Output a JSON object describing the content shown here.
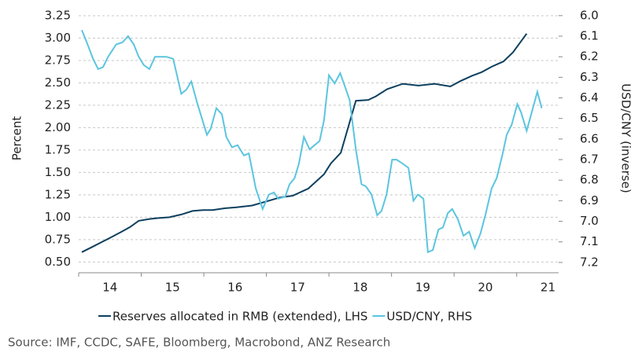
{
  "chart_data": {
    "type": "line",
    "y_axis_label": "Percent",
    "y2_axis_label": "USD/CNY (inverse)",
    "source": "Source: IMF, CCDC, SAFE, Bloomberg, Macrobond, ANZ Research",
    "xlim": [
      2014,
      2021.67
    ],
    "xticks": [
      {
        "value": 2014.5,
        "label": "14"
      },
      {
        "value": 2015.5,
        "label": "15"
      },
      {
        "value": 2016.5,
        "label": "16"
      },
      {
        "value": 2017.5,
        "label": "17"
      },
      {
        "value": 2018.5,
        "label": "18"
      },
      {
        "value": 2019.5,
        "label": "19"
      },
      {
        "value": 2020.5,
        "label": "20"
      },
      {
        "value": 2021.5,
        "label": "21"
      }
    ],
    "xminor_ticks": [
      2014,
      2015,
      2016,
      2017,
      2018,
      2019,
      2020,
      2021
    ],
    "ylim": [
      0.38,
      3.32
    ],
    "yticks": [
      {
        "value": 0.5,
        "label": "0.50"
      },
      0.75,
      {
        "value": 1,
        "label": "1.00"
      },
      1.25,
      {
        "value": 1.5,
        "label": "1.50"
      },
      1.75,
      {
        "value": 2,
        "label": "2.00"
      },
      2.25,
      {
        "value": 2.5,
        "label": "2.50"
      },
      2.75,
      {
        "value": 3,
        "label": "3.00"
      },
      3.25
    ],
    "y2lim": [
      5.97,
      7.25
    ],
    "y2_inverse": true,
    "y2ticks": [
      {
        "value": 6,
        "label": "6.0"
      },
      6.1,
      6.2,
      6.3,
      6.4,
      6.5,
      6.6,
      6.7,
      6.8,
      6.9,
      {
        "value": 7,
        "label": "7.0"
      },
      7.1,
      7.2
    ],
    "grid": true,
    "series": [
      {
        "name": "Reserves allocated in RMB (extended), LHS",
        "color": "#0d3f5f",
        "x": [
          2014.05,
          2014.25,
          2014.5,
          2014.69,
          2014.82,
          2014.96,
          2015.13,
          2015.26,
          2015.45,
          2015.64,
          2015.82,
          2015.99,
          2016.14,
          2016.33,
          2016.52,
          2016.77,
          2017.02,
          2017.21,
          2017.42,
          2017.67,
          2017.92,
          2018.03,
          2018.19,
          2018.43,
          2018.63,
          2018.75,
          2018.93,
          2019.18,
          2019.43,
          2019.69,
          2019.94,
          2020.1,
          2020.29,
          2020.44,
          2020.6,
          2020.79,
          2020.94,
          2021.16
        ],
        "values": [
          0.61,
          0.68,
          0.77,
          0.84,
          0.89,
          0.96,
          0.98,
          0.99,
          1.0,
          1.03,
          1.07,
          1.08,
          1.08,
          1.1,
          1.11,
          1.13,
          1.18,
          1.22,
          1.24,
          1.32,
          1.48,
          1.6,
          1.72,
          2.3,
          2.31,
          2.35,
          2.43,
          2.49,
          2.47,
          2.49,
          2.46,
          2.52,
          2.58,
          2.62,
          2.68,
          2.74,
          2.84,
          3.05
        ]
      },
      {
        "name": "USD/CNY, RHS",
        "color": "#5bc5df",
        "axis": "y2",
        "x": [
          2014.05,
          2014.13,
          2014.23,
          2014.31,
          2014.39,
          2014.47,
          2014.6,
          2014.7,
          2014.79,
          2014.88,
          2014.96,
          2015.04,
          2015.13,
          2015.22,
          2015.31,
          2015.4,
          2015.51,
          2015.64,
          2015.72,
          2015.8,
          2015.89,
          2016.05,
          2016.11,
          2016.2,
          2016.29,
          2016.36,
          2016.45,
          2016.54,
          2016.64,
          2016.72,
          2016.83,
          2016.94,
          2017.04,
          2017.12,
          2017.19,
          2017.3,
          2017.37,
          2017.45,
          2017.52,
          2017.6,
          2017.69,
          2017.77,
          2017.85,
          2017.92,
          2018.0,
          2018.09,
          2018.18,
          2018.25,
          2018.33,
          2018.43,
          2018.52,
          2018.59,
          2018.68,
          2018.77,
          2018.84,
          2018.92,
          2019.01,
          2019.08,
          2019.18,
          2019.27,
          2019.35,
          2019.42,
          2019.51,
          2019.58,
          2019.66,
          2019.75,
          2019.82,
          2019.9,
          2019.97,
          2020.06,
          2020.15,
          2020.24,
          2020.33,
          2020.42,
          2020.5,
          2020.6,
          2020.68,
          2020.77,
          2020.84,
          2020.92,
          2021.01,
          2021.07,
          2021.16,
          2021.25,
          2021.33,
          2021.4
        ],
        "values": [
          6.07,
          6.13,
          6.21,
          6.26,
          6.25,
          6.2,
          6.14,
          6.13,
          6.1,
          6.14,
          6.2,
          6.24,
          6.26,
          6.2,
          6.2,
          6.2,
          6.21,
          6.38,
          6.36,
          6.32,
          6.42,
          6.58,
          6.55,
          6.45,
          6.48,
          6.59,
          6.64,
          6.63,
          6.68,
          6.67,
          6.84,
          6.94,
          6.87,
          6.86,
          6.89,
          6.88,
          6.82,
          6.79,
          6.72,
          6.59,
          6.65,
          6.63,
          6.61,
          6.51,
          6.29,
          6.33,
          6.28,
          6.34,
          6.41,
          6.65,
          6.82,
          6.83,
          6.87,
          6.97,
          6.95,
          6.87,
          6.7,
          6.7,
          6.72,
          6.74,
          6.9,
          6.87,
          6.89,
          7.15,
          7.14,
          7.04,
          7.03,
          6.96,
          6.94,
          6.99,
          7.07,
          7.05,
          7.13,
          7.06,
          6.97,
          6.84,
          6.79,
          6.68,
          6.58,
          6.53,
          6.43,
          6.47,
          6.56,
          6.46,
          6.37,
          6.45
        ]
      }
    ]
  }
}
